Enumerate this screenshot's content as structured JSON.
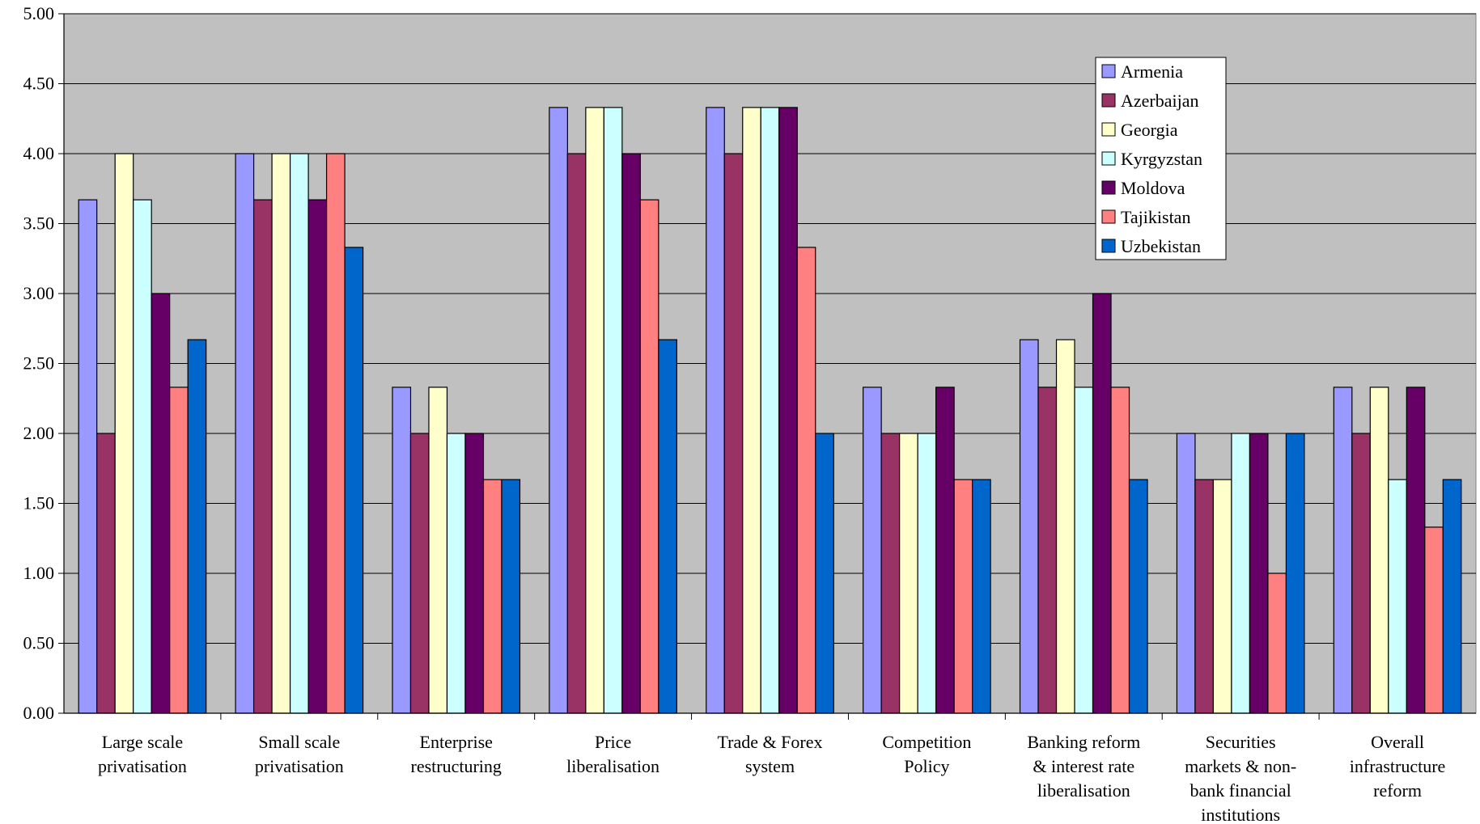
{
  "chart_data": {
    "type": "bar",
    "title": "",
    "xlabel": "",
    "ylabel": "",
    "ylim": [
      0,
      5
    ],
    "yticks": [
      "0.00",
      "0.50",
      "1.00",
      "1.50",
      "2.00",
      "2.50",
      "3.00",
      "3.50",
      "4.00",
      "4.50",
      "5.00"
    ],
    "grid": "horizontal",
    "legend_position": "top-right",
    "background": "#C0C0C0",
    "categories": [
      [
        "Large scale",
        "privatisation"
      ],
      [
        "Small scale",
        "privatisation"
      ],
      [
        "Enterprise",
        "restructuring"
      ],
      [
        "Price",
        "liberalisation"
      ],
      [
        "Trade & Forex",
        "system"
      ],
      [
        "Competition",
        "Policy"
      ],
      [
        "Banking reform",
        "& interest rate",
        "liberalisation"
      ],
      [
        "Securities",
        "markets & non-",
        "bank financial",
        "institutions"
      ],
      [
        "Overall",
        "infrastructure",
        "reform"
      ]
    ],
    "series": [
      {
        "name": "Armenia",
        "color": "#9999FF",
        "values": [
          3.67,
          4.0,
          2.33,
          4.33,
          4.33,
          2.33,
          2.67,
          2.0,
          2.33
        ]
      },
      {
        "name": "Azerbaijan",
        "color": "#993366",
        "values": [
          2.0,
          3.67,
          2.0,
          4.0,
          4.0,
          2.0,
          2.33,
          1.67,
          2.0
        ]
      },
      {
        "name": "Georgia",
        "color": "#FFFFCC",
        "values": [
          4.0,
          4.0,
          2.33,
          4.33,
          4.33,
          2.0,
          2.67,
          1.67,
          2.33
        ]
      },
      {
        "name": "Kyrgyzstan",
        "color": "#CCFFFF",
        "values": [
          3.67,
          4.0,
          2.0,
          4.33,
          4.33,
          2.0,
          2.33,
          2.0,
          1.67
        ]
      },
      {
        "name": "Moldova",
        "color": "#660066",
        "values": [
          3.0,
          3.67,
          2.0,
          4.0,
          4.33,
          2.33,
          3.0,
          2.0,
          2.33
        ]
      },
      {
        "name": "Tajikistan",
        "color": "#FF8080",
        "values": [
          2.33,
          4.0,
          1.67,
          3.67,
          3.33,
          1.67,
          2.33,
          1.0,
          1.33
        ]
      },
      {
        "name": "Uzbekistan",
        "color": "#0066CC",
        "values": [
          2.67,
          3.33,
          1.67,
          2.67,
          2.0,
          1.67,
          1.67,
          2.0,
          1.67
        ]
      }
    ]
  }
}
